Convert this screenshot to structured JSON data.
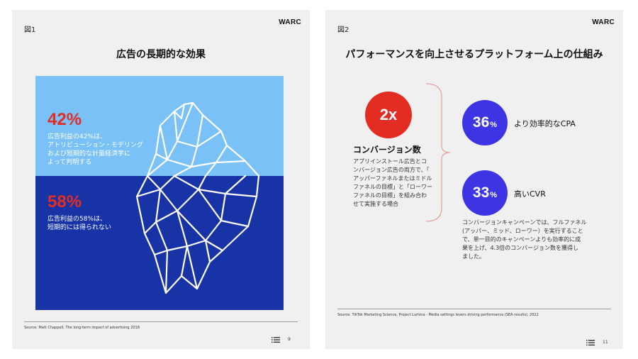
{
  "left_page": {
    "brand": "WARC",
    "figure_label": "図1",
    "title": "広告の長期的な効果",
    "stat_top": {
      "value": "42%",
      "description_lines": [
        "広告利益の42%は、",
        "アトリビューション・モデリング",
        "および短期的な計量経済学に",
        "よって判明する"
      ]
    },
    "stat_bottom": {
      "value": "58%",
      "description_lines": [
        "広告利益の58%は、",
        "短期的には得られない"
      ]
    },
    "source": "Source: Matt Chappell, The long-term impact of advertising 2018",
    "page_number": "9",
    "colors": {
      "sky": "#79c1f6",
      "sea": "#1833a6",
      "accent": "#e32d22"
    }
  },
  "right_page": {
    "brand": "WARC",
    "figure_label": "図2",
    "title": "パフォーマンスを向上させるプラットフォーム上の仕組み",
    "main_metric": {
      "value": "2x",
      "label": "コンバージョン数",
      "description_lines": [
        "アプリインストール広告とコ",
        "ンバージョン広告の両方で、「",
        "アッパーファネルまたはミドル",
        "ファネルの目標」と「ローワー",
        "ファネルの目標」を組み合わ",
        "せて実施する場合"
      ]
    },
    "metrics": [
      {
        "value": "36",
        "unit": "%",
        "label": "より効率的なCPA"
      },
      {
        "value": "33",
        "unit": "%",
        "label": "高いCVR"
      }
    ],
    "detail_lines": [
      "コンバージョンキャンペーンでは、フルファネル",
      "(アッパー、ミッド、ローワー）を実行すること",
      "で、単一目的のキャンペーンよりも効率的に成",
      "果を上げ、4.3倍のコンバージョン数を獲得し",
      "ました。"
    ],
    "source": "Source: TikTok Marketing Science, Project Lumina - Media settings levers driving performance (SEA results), 2022",
    "page_number": "11",
    "colors": {
      "red": "#e32d22",
      "blue": "#3d35e4"
    }
  }
}
